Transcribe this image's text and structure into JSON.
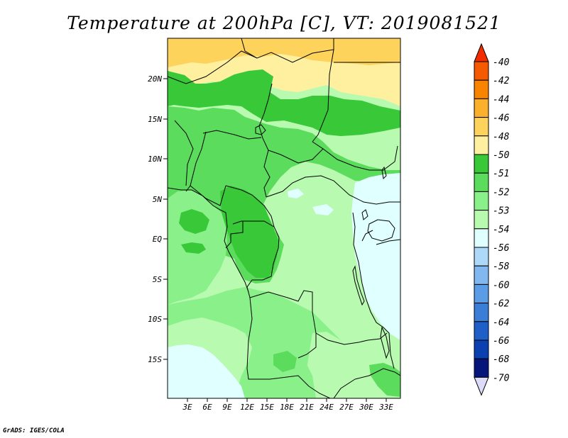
{
  "title": "Temperature at 200hPa [C], VT: 2019081521",
  "credit": "GrADS: IGES/COLA",
  "lat_labels": [
    "20N",
    "15N",
    "10N",
    "5N",
    "EQ",
    "5S",
    "10S",
    "15S"
  ],
  "lon_labels": [
    "3E",
    "6E",
    "9E",
    "12E",
    "15E",
    "18E",
    "21E",
    "24E",
    "27E",
    "30E",
    "33E"
  ],
  "colorbar": {
    "labels": [
      "-40",
      "-42",
      "-44",
      "-46",
      "-48",
      "-50",
      "-51",
      "-52",
      "-53",
      "-54",
      "-56",
      "-58",
      "-60",
      "-62",
      "-64",
      "-66",
      "-68",
      "-70"
    ],
    "colors": [
      "#f22b00",
      "#f55a00",
      "#f98400",
      "#fbb02d",
      "#fdd35c",
      "#fff0a0",
      "#38c838",
      "#5cdc5c",
      "#8af08a",
      "#b8fab0",
      "#e0ffff",
      "#aed8f8",
      "#82b8f0",
      "#5a9ce6",
      "#3a7ed8",
      "#1e60c8",
      "#0a40b0",
      "#06157a",
      "#dcdcf8"
    ]
  },
  "colors": {
    "c_m50": "#fff0a0",
    "c_m48": "#fdd35c",
    "c_m51": "#38c838",
    "c_m52": "#5cdc5c",
    "c_m53": "#8af08a",
    "c_m54": "#b8fab0",
    "c_m56": "#e0ffff"
  }
}
